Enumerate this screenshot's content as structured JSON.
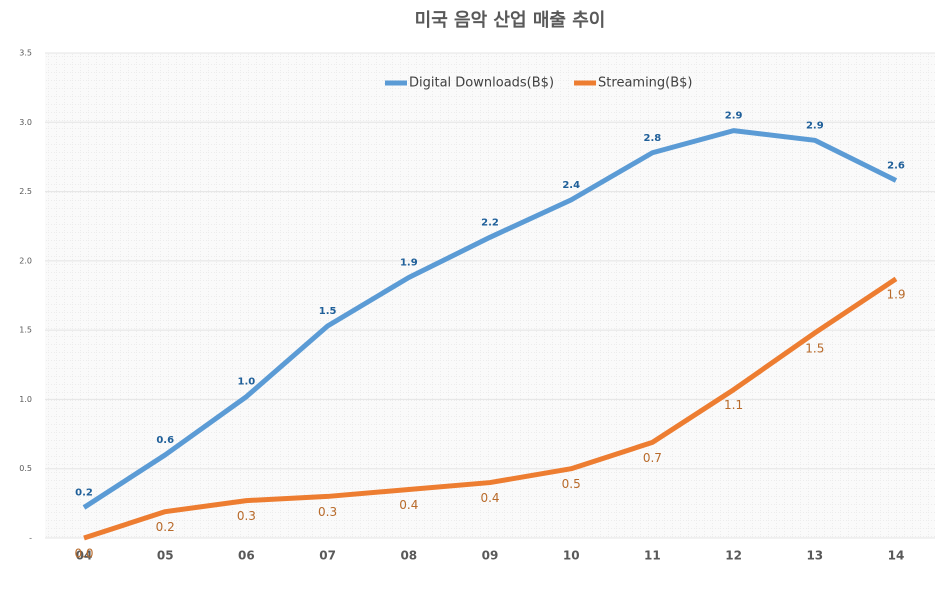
{
  "chart_data": {
    "type": "line",
    "title": "미국 음악 산업 매출 추이",
    "categories": [
      "04",
      "05",
      "06",
      "07",
      "08",
      "09",
      "10",
      "11",
      "12",
      "13",
      "14"
    ],
    "series": [
      {
        "name": "Digital Downloads(B$)",
        "color": "#5b9bd5",
        "values": [
          0.22,
          0.6,
          1.02,
          1.53,
          1.88,
          2.17,
          2.44,
          2.78,
          2.94,
          2.87,
          2.58
        ],
        "value_labels": [
          "0.2",
          "0.6",
          "1.0",
          "1.5",
          "1.9",
          "2.2",
          "2.4",
          "2.8",
          "2.9",
          "2.9",
          "2.6"
        ]
      },
      {
        "name": "Streaming(B$)",
        "color": "#ed7d31",
        "values": [
          0,
          0.19,
          0.27,
          0.3,
          0.35,
          0.4,
          0.5,
          0.69,
          1.07,
          1.48,
          1.87
        ],
        "value_labels": [
          "0.0",
          "0.2",
          "0.3",
          "0.3",
          "0.4",
          "0.4",
          "0.5",
          "0.7",
          "1.1",
          "1.5",
          "1.9"
        ]
      }
    ],
    "ylim": [
      0,
      3.5
    ],
    "yticks": [
      {
        "value": 0,
        "label": "-"
      },
      0.5,
      {
        "value": 1,
        "label": "1.0"
      },
      1.5,
      {
        "value": 2,
        "label": "2.0"
      },
      2.5,
      {
        "value": 3,
        "label": "3.0"
      },
      3.5
    ],
    "grid": true,
    "legend": "top"
  }
}
